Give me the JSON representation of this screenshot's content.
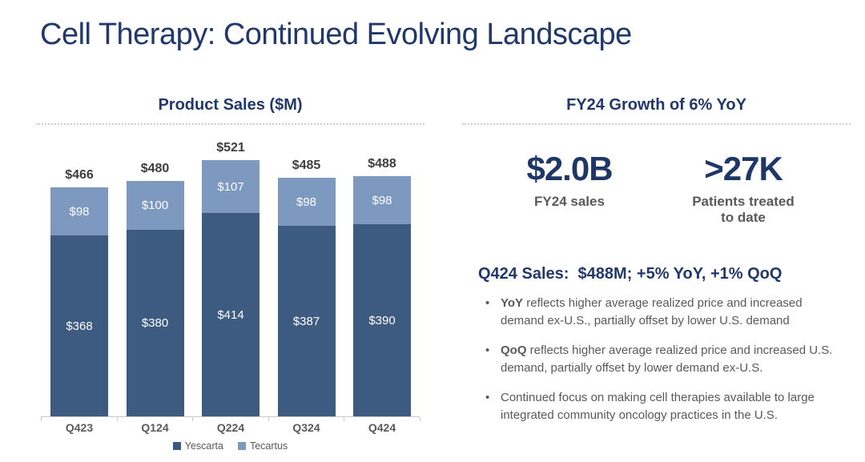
{
  "slide": {
    "title": "Cell Therapy: Continued Evolving Landscape"
  },
  "chart_data": {
    "type": "bar",
    "stacked": true,
    "title": "Product Sales ($M)",
    "categories": [
      "Q423",
      "Q124",
      "Q224",
      "Q324",
      "Q424"
    ],
    "series": [
      {
        "name": "Yescarta",
        "color": "#3D5A80",
        "values": [
          368,
          380,
          414,
          387,
          390
        ]
      },
      {
        "name": "Tecartus",
        "color": "#7E99C0",
        "values": [
          98,
          100,
          107,
          98,
          98
        ]
      }
    ],
    "totals": [
      466,
      480,
      521,
      485,
      488
    ],
    "value_prefix": "$",
    "xlabel": "",
    "ylabel": "",
    "ylim": [
      0,
      521
    ],
    "grid": false,
    "legend_position": "bottom"
  },
  "right_panel": {
    "title": "FY24 Growth of 6% YoY",
    "stats": [
      {
        "value": "$2.0B",
        "label": "FY24 sales"
      },
      {
        "value": ">27K",
        "label": "Patients treated to date"
      }
    ],
    "highlight": "Q424 Sales:  $488M; +5% YoY, +1% QoQ",
    "bullets": [
      {
        "lead": "YoY",
        "text": " reflects higher average realized price and increased demand ex-U.S., partially offset by lower U.S. demand"
      },
      {
        "lead": "QoQ",
        "text": " reflects higher average realized price and increased U.S. demand, partially offset by lower demand ex-U.S."
      },
      {
        "lead": "",
        "text": "Continued focus on making cell therapies available to large integrated community oncology practices in the U.S."
      }
    ]
  },
  "colors": {
    "navy_heading": "#21386B",
    "gray_text": "#595959",
    "total_label": "#3E3E3E",
    "axis": "#C9C9C9",
    "segment_label": "#FFFFFF"
  }
}
